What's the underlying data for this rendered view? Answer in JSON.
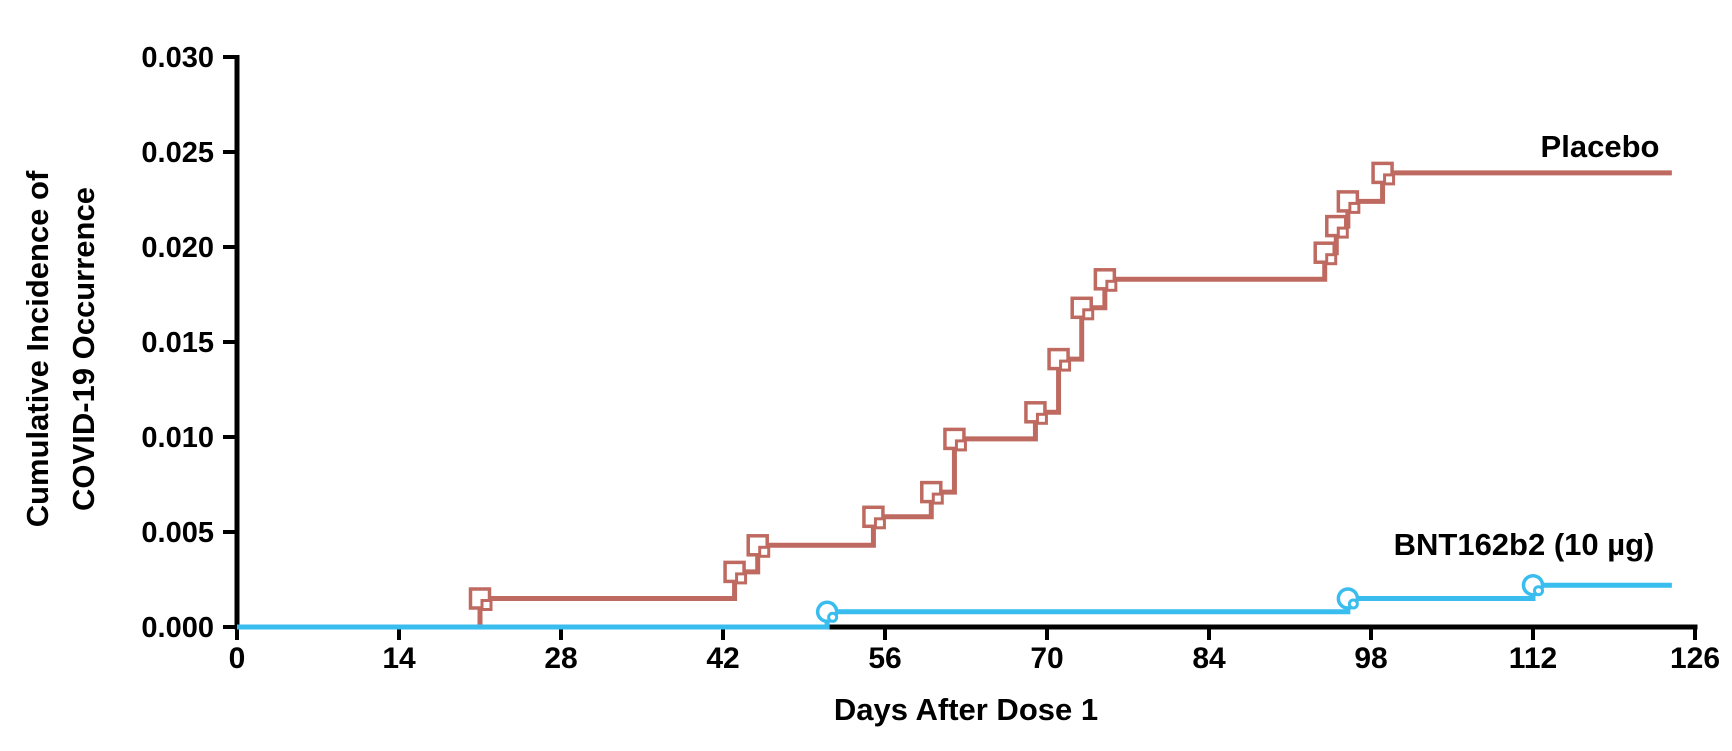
{
  "chart_data": {
    "type": "line",
    "subtype": "kaplan-meier-step",
    "title": "",
    "xlabel": "Days After Dose 1",
    "ylabel_lines": [
      "Cumulative Incidence of",
      "COVID-19 Occurrence"
    ],
    "xlim": [
      0,
      126
    ],
    "ylim": [
      0.0,
      0.03
    ],
    "x_ticks": [
      0,
      14,
      28,
      42,
      56,
      70,
      84,
      98,
      112,
      126
    ],
    "y_ticks": [
      "0.000",
      "0.005",
      "0.010",
      "0.015",
      "0.020",
      "0.025",
      "0.030"
    ],
    "grid": false,
    "axis_color": "#000000",
    "legend_position": "inline-right-of-curves",
    "series": [
      {
        "name": "Placebo",
        "color": "#bf6a60",
        "marker": "open-square",
        "start_day": 0,
        "start_value": 0.0,
        "end_day": 124,
        "final_value": 0.0239,
        "events": [
          [
            21,
            0.0015
          ],
          [
            43,
            0.0029
          ],
          [
            45,
            0.0043
          ],
          [
            55,
            0.0058
          ],
          [
            60,
            0.0071
          ],
          [
            62,
            0.0099
          ],
          [
            69,
            0.0113
          ],
          [
            71,
            0.0141
          ],
          [
            73,
            0.0168
          ],
          [
            75,
            0.0183
          ],
          [
            94,
            0.0197
          ],
          [
            95,
            0.0211
          ],
          [
            96,
            0.0224
          ],
          [
            99,
            0.0239
          ]
        ]
      },
      {
        "name": "BNT162b2 (10 µg)",
        "color": "#38bdee",
        "marker": "open-circle",
        "start_day": 0,
        "start_value": 0.0,
        "end_day": 124,
        "final_value": 0.0022,
        "events": [
          [
            51,
            0.0008
          ],
          [
            96,
            0.0015
          ],
          [
            112,
            0.0022
          ]
        ]
      }
    ]
  }
}
